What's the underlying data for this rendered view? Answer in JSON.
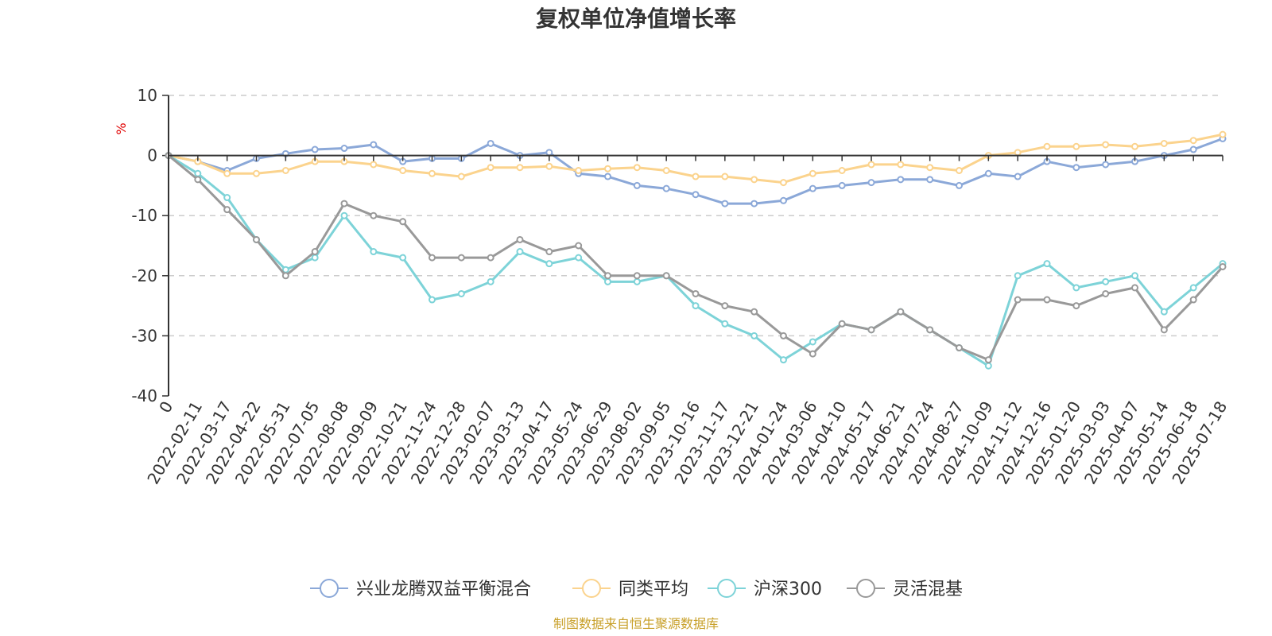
{
  "chart_data": {
    "type": "line",
    "title": "复权单位净值增长率",
    "unit_label": "%",
    "ylim": [
      -40,
      10
    ],
    "y_ticks": [
      10,
      0,
      -10,
      -20,
      -30,
      -40
    ],
    "grid": true,
    "legend_position": "bottom-center",
    "source": "制图数据来自恒生聚源数据库",
    "x_tick_labels": [
      "0",
      "2022-02-11",
      "2022-03-17",
      "2022-04-22",
      "2022-05-31",
      "2022-07-05",
      "2022-08-08",
      "2022-09-09",
      "2022-10-21",
      "2022-11-24",
      "2022-12-28",
      "2023-02-07",
      "2023-03-13",
      "2023-04-17",
      "2023-05-24",
      "2023-06-29",
      "2023-08-02",
      "2023-09-05",
      "2023-10-16",
      "2023-11-17",
      "2023-12-21",
      "2024-01-24",
      "2024-03-06",
      "2024-04-10",
      "2024-05-17",
      "2024-06-21",
      "2024-07-24",
      "2024-08-27",
      "2024-10-09",
      "2024-11-12",
      "2024-12-16",
      "2025-01-20",
      "2025-03-03",
      "2025-04-07",
      "2025-05-14",
      "2025-06-18",
      "2025-07-18"
    ],
    "series": [
      {
        "name": "兴业龙腾双益平衡混合",
        "color": "#8ba8d8",
        "values": [
          0,
          -1,
          -2.5,
          -0.5,
          0.3,
          1,
          1.2,
          1.8,
          -1,
          -0.5,
          -0.5,
          2,
          0,
          0.5,
          -3,
          -3.5,
          -5,
          -5.5,
          -6.5,
          -8,
          -8,
          -7.5,
          -5.5,
          -5,
          -4.5,
          -4,
          -4,
          -5,
          -3,
          -3.5,
          -1,
          -2,
          -1.5,
          -1,
          0,
          1,
          2.8
        ]
      },
      {
        "name": "同类平均",
        "color": "#fbd38d",
        "values": [
          0,
          -1,
          -3,
          -3,
          -2.5,
          -1,
          -1,
          -1.5,
          -2.5,
          -3,
          -3.5,
          -2,
          -2,
          -1.8,
          -2.5,
          -2.2,
          -2,
          -2.5,
          -3.5,
          -3.5,
          -4,
          -4.5,
          -3,
          -2.5,
          -1.5,
          -1.5,
          -2,
          -2.5,
          0,
          0.5,
          1.5,
          1.5,
          1.8,
          1.5,
          2,
          2.5,
          3.5
        ]
      },
      {
        "name": "沪深300",
        "color": "#7dd3d8",
        "values": [
          0,
          -3,
          -7,
          -14,
          -19,
          -17,
          -10,
          -16,
          -17,
          -24,
          -23,
          -21,
          -16,
          -18,
          -17,
          -21,
          -21,
          -20,
          -25,
          -28,
          -30,
          -34,
          -31,
          -28,
          -29,
          -26,
          -29,
          -32,
          -35,
          -20,
          -18,
          -22,
          -21,
          -20,
          -26,
          -22,
          -18
        ]
      },
      {
        "name": "灵活混基",
        "color": "#999999",
        "values": [
          0,
          -4,
          -9,
          -14,
          -20,
          -16,
          -8,
          -10,
          -11,
          -17,
          -17,
          -17,
          -14,
          -16,
          -15,
          -20,
          -20,
          -20,
          -23,
          -25,
          -26,
          -30,
          -33,
          -28,
          -29,
          -26,
          -29,
          -32,
          -34,
          -24,
          -24,
          -25,
          -23,
          -22,
          -29,
          -24,
          -18.5
        ]
      }
    ]
  }
}
